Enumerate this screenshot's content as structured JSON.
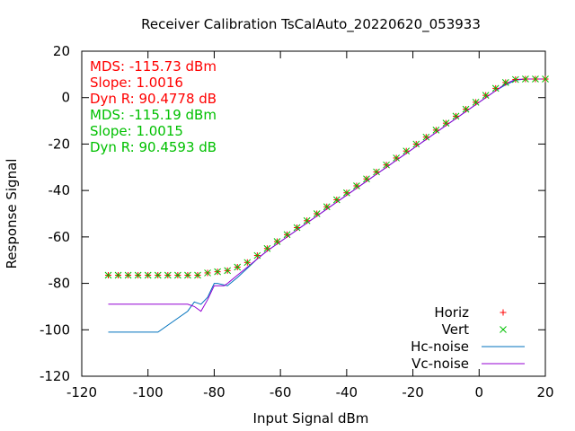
{
  "chart_data": {
    "type": "scatter",
    "title": "Receiver Calibration TsCalAuto_20220620_053933",
    "xlabel": "Input Signal dBm",
    "ylabel": "Response Signal",
    "xlim": [
      -120,
      20
    ],
    "ylim": [
      -120,
      20
    ],
    "x_ticks": [
      "-120",
      "-100",
      "-80",
      "-60",
      "-40",
      "-20",
      "0",
      "20"
    ],
    "y_ticks": [
      "-120",
      "-100",
      "-80",
      "-60",
      "-40",
      "-20",
      "0",
      "20"
    ],
    "grid": false,
    "legend_position": "bottom-right",
    "annotations": [
      {
        "text": "MDS: -115.73 dBm",
        "color": "#ff0000"
      },
      {
        "text": "Slope: 1.0016",
        "color": "#ff0000"
      },
      {
        "text": "Dyn R: 90.4778 dB",
        "color": "#ff0000"
      },
      {
        "text": "MDS: -115.19 dBm",
        "color": "#00c000"
      },
      {
        "text": "Slope: 1.0015",
        "color": "#00c000"
      },
      {
        "text": "Dyn R: 90.4593 dB",
        "color": "#00c000"
      }
    ],
    "series": [
      {
        "name": "Horiz",
        "marker": "plus",
        "color": "#ff0000",
        "x": [
          -112,
          -109,
          -106,
          -103,
          -100,
          -97,
          -94,
          -91,
          -88,
          -85,
          -82,
          -79,
          -76,
          -73,
          -70,
          -67,
          -64,
          -61,
          -58,
          -55,
          -52,
          -49,
          -46,
          -43,
          -40,
          -37,
          -34,
          -31,
          -28,
          -25,
          -22,
          -19,
          -16,
          -13,
          -10,
          -7,
          -4,
          -1,
          2,
          5,
          8,
          11,
          14,
          17,
          20
        ],
        "y": [
          -76.5,
          -76.5,
          -76.5,
          -76.5,
          -76.5,
          -76.5,
          -76.5,
          -76.5,
          -76.5,
          -76.5,
          -75.5,
          -75,
          -74.5,
          -73,
          -71,
          -68,
          -65,
          -62,
          -59,
          -56,
          -53,
          -50,
          -47,
          -44,
          -41,
          -38,
          -35,
          -32,
          -29,
          -26,
          -23,
          -20,
          -17,
          -14,
          -11,
          -8,
          -5,
          -2,
          1,
          4,
          6.5,
          7.8,
          8,
          8,
          8
        ]
      },
      {
        "name": "Vert",
        "marker": "cross",
        "color": "#00c000",
        "x": [
          -112,
          -109,
          -106,
          -103,
          -100,
          -97,
          -94,
          -91,
          -88,
          -85,
          -82,
          -79,
          -76,
          -73,
          -70,
          -67,
          -64,
          -61,
          -58,
          -55,
          -52,
          -49,
          -46,
          -43,
          -40,
          -37,
          -34,
          -31,
          -28,
          -25,
          -22,
          -19,
          -16,
          -13,
          -10,
          -7,
          -4,
          -1,
          2,
          5,
          8,
          11,
          14,
          17,
          20
        ],
        "y": [
          -76.5,
          -76.5,
          -76.5,
          -76.5,
          -76.5,
          -76.5,
          -76.5,
          -76.5,
          -76.5,
          -76.5,
          -75.5,
          -75,
          -74.5,
          -73,
          -71,
          -68,
          -65,
          -62,
          -59,
          -56,
          -53,
          -50,
          -47,
          -44,
          -41,
          -38,
          -35,
          -32,
          -29,
          -26,
          -23,
          -20,
          -17,
          -14,
          -11,
          -8,
          -5,
          -2,
          1,
          4,
          6.5,
          7.8,
          8,
          8,
          8
        ]
      },
      {
        "name": "Hc-noise",
        "marker": "line",
        "color": "#0072bd",
        "x": [
          -112,
          -97,
          -91,
          -88,
          -86,
          -84,
          -82,
          -80,
          -79,
          -76,
          -73,
          -70,
          -67,
          -64,
          -61,
          -58,
          -55,
          -52,
          -49,
          -46,
          -43,
          -40,
          -37,
          -34,
          -31,
          -28,
          -25,
          -22,
          -19,
          -16,
          -13,
          -10,
          -7,
          -4,
          -1,
          2,
          5,
          8,
          11,
          14,
          17,
          20
        ],
        "y": [
          -101,
          -101,
          -95,
          -92,
          -88,
          -89,
          -86,
          -80,
          -80,
          -81,
          -77.5,
          -73.5,
          -69.5,
          -66,
          -63,
          -60,
          -57,
          -54,
          -51,
          -48,
          -45,
          -42,
          -39,
          -36,
          -33,
          -30,
          -27,
          -24,
          -21,
          -18,
          -15,
          -12,
          -9,
          -6,
          -3,
          0,
          3,
          5.5,
          7.5,
          8,
          8,
          8
        ]
      },
      {
        "name": "Vc-noise",
        "marker": "line",
        "color": "#9400d3",
        "x": [
          -112,
          -97,
          -94,
          -91,
          -88,
          -86,
          -84,
          -82,
          -80,
          -77,
          -76,
          -73,
          -70,
          -67,
          -64,
          -61,
          -58,
          -55,
          -52,
          -49,
          -46,
          -43,
          -40,
          -37,
          -34,
          -31,
          -28,
          -25,
          -22,
          -19,
          -16,
          -13,
          -10,
          -7,
          -4,
          -1,
          2,
          5,
          8,
          11,
          14,
          17,
          20
        ],
        "y": [
          -89,
          -89,
          -89,
          -89,
          -89,
          -90,
          -92,
          -87,
          -81,
          -81,
          -80,
          -76.5,
          -73,
          -69.5,
          -66,
          -63,
          -60,
          -57,
          -54,
          -51,
          -48,
          -45,
          -42,
          -39,
          -36,
          -33,
          -30,
          -27,
          -24,
          -21,
          -18,
          -15,
          -12,
          -9,
          -6,
          -3,
          0,
          3,
          6,
          7.8,
          8,
          8,
          8
        ]
      }
    ]
  }
}
